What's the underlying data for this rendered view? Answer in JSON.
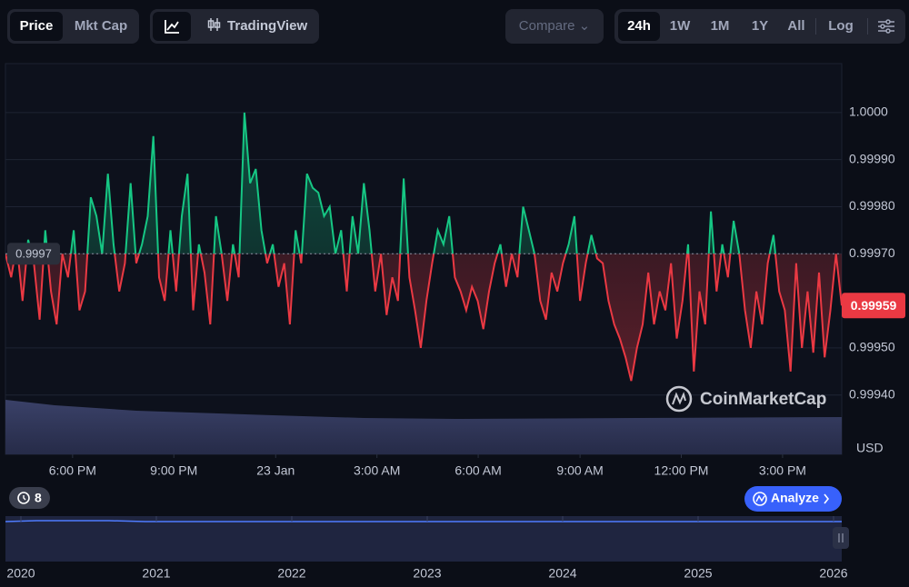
{
  "toolbar": {
    "price": "Price",
    "mkt_cap": "Mkt Cap",
    "tradingview": "TradingView",
    "compare": "Compare",
    "ranges": [
      "24h",
      "1W",
      "1M",
      "1Y",
      "All"
    ],
    "log": "Log"
  },
  "chart_data": {
    "type": "line",
    "up_color": "#16c784",
    "down_color": "#ea3943",
    "baseline": 0.9997,
    "last_price": 0.99959,
    "currency": "USD",
    "watermark": "CoinMarketCap",
    "series": [
      {
        "values": [
          0.9997,
          0.99965,
          0.99972,
          0.9996,
          0.99973,
          0.99968,
          0.99956,
          0.99975,
          0.99962,
          0.99955,
          0.9997,
          0.99965,
          0.99975,
          0.99958,
          0.99962,
          0.99982,
          0.99978,
          0.9997,
          0.99987,
          0.99972,
          0.99962,
          0.99968,
          0.99985,
          0.99968,
          0.99972,
          0.99978,
          0.99995,
          0.99965,
          0.9996,
          0.99975,
          0.99962,
          0.99978,
          0.99987,
          0.99958,
          0.99972,
          0.99966,
          0.99955,
          0.99978,
          0.9997,
          0.9996,
          0.99972,
          0.99965,
          1.0,
          0.99985,
          0.99988,
          0.99975,
          0.99968,
          0.99972,
          0.99963,
          0.99968,
          0.99955,
          0.99975,
          0.99968,
          0.99987,
          0.99984,
          0.99983,
          0.99978,
          0.9998,
          0.9997,
          0.99975,
          0.99962,
          0.99978,
          0.9997,
          0.99985,
          0.99975,
          0.99962,
          0.9997,
          0.99957,
          0.99965,
          0.9996,
          0.99986,
          0.99965,
          0.99958,
          0.9995,
          0.9996,
          0.99968,
          0.99975,
          0.99972,
          0.99978,
          0.99965,
          0.99962,
          0.99958,
          0.99963,
          0.9996,
          0.99954,
          0.99962,
          0.99968,
          0.99972,
          0.99963,
          0.9997,
          0.99965,
          0.9998,
          0.99975,
          0.9997,
          0.9996,
          0.99956,
          0.99966,
          0.99962,
          0.99968,
          0.99972,
          0.99978,
          0.9996,
          0.99968,
          0.99974,
          0.99969,
          0.99968,
          0.9996,
          0.99955,
          0.99952,
          0.99948,
          0.99943,
          0.9995,
          0.99955,
          0.99966,
          0.99955,
          0.99962,
          0.99958,
          0.99968,
          0.99952,
          0.9996,
          0.99972,
          0.99945,
          0.99962,
          0.99955,
          0.99979,
          0.99962,
          0.99972,
          0.99965,
          0.99977,
          0.9997,
          0.99958,
          0.9995,
          0.99962,
          0.99955,
          0.99968,
          0.99974,
          0.99962,
          0.99958,
          0.99945,
          0.99968,
          0.9995,
          0.99962,
          0.99949,
          0.99966,
          0.99948,
          0.99958,
          0.9997,
          0.99959
        ]
      }
    ],
    "ylim": [
      0.999274,
      1.000104
    ],
    "yticks": [
      {
        "value": 1.0,
        "label": "1.0000"
      },
      {
        "value": 0.9999,
        "label": "0.99990"
      },
      {
        "value": 0.9998,
        "label": "0.99980"
      },
      {
        "value": 0.9997,
        "label": "0.99970"
      },
      {
        "value": 0.9995,
        "label": "0.99950"
      },
      {
        "value": 0.9994,
        "label": "0.99940"
      }
    ],
    "xlim": [
      0,
      147
    ],
    "xticks": [
      {
        "value": 11.8,
        "label": "6:00 PM"
      },
      {
        "value": 29.6,
        "label": "9:00 PM"
      },
      {
        "value": 47.5,
        "label": "23 Jan"
      },
      {
        "value": 65.3,
        "label": "3:00 AM"
      },
      {
        "value": 83.1,
        "label": "6:00 AM"
      },
      {
        "value": 101,
        "label": "9:00 AM"
      },
      {
        "value": 118.8,
        "label": "12:00 PM"
      },
      {
        "value": 136.6,
        "label": "3:00 PM"
      }
    ]
  },
  "alerts": {
    "count": 8
  },
  "analyze": "Analyze",
  "navigator": {
    "years": [
      "2020",
      "2021",
      "2022",
      "2023",
      "2024",
      "2025",
      "2026"
    ]
  }
}
